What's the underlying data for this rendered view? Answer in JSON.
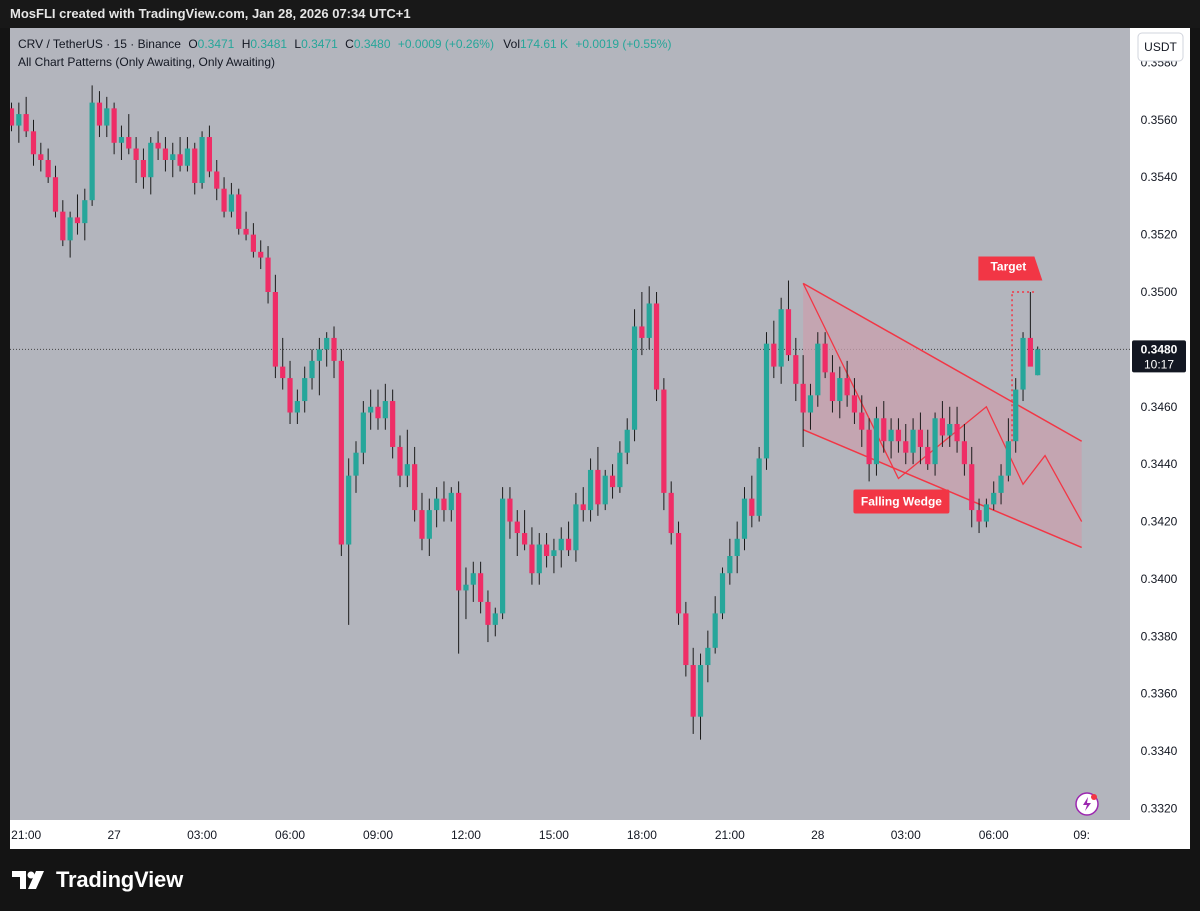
{
  "header": {
    "created_by": "MosFLI created with TradingView.com, Jan 28, 2026 07:34 UTC+1"
  },
  "legend": {
    "symbol": "CRV / TetherUS · 15 · Binance",
    "o_label": "O",
    "o_value": "0.3471",
    "h_label": "H",
    "h_value": "0.3481",
    "l_label": "L",
    "l_value": "0.3471",
    "c_label": "C",
    "c_value": "0.3480",
    "change": "+0.0009 (+0.26%)",
    "vol_label": "Vol",
    "vol_value": "174.61 K",
    "vol_change": "+0.0019 (+0.55%)",
    "indicator": "All Chart Patterns (Only Awaiting, Only Awaiting)"
  },
  "currency_button": "USDT",
  "price_tag": {
    "price": "0.3480",
    "countdown": "10:17"
  },
  "annotations": {
    "target": "Target",
    "pattern": "Falling Wedge"
  },
  "brand": {
    "name": "TradingView"
  },
  "colors": {
    "up": "#26a69a",
    "down": "#ef2d66",
    "background": "#b3b5bd",
    "pattern_line": "#f23645",
    "pattern_fill": "#c9a0ae"
  },
  "chart_data": {
    "type": "candlestick",
    "symbol": "CRV / TetherUS",
    "interval": "15",
    "exchange": "Binance",
    "ylim": [
      0.3316,
      0.3592
    ],
    "yticks": [
      "0.3580",
      "0.3560",
      "0.3540",
      "0.3520",
      "0.3500",
      "0.3460",
      "0.3440",
      "0.3420",
      "0.3400",
      "0.3380",
      "0.3360",
      "0.3340",
      "0.3320"
    ],
    "xticks": [
      {
        "label": "21:00",
        "index": 2
      },
      {
        "label": "27",
        "index": 14
      },
      {
        "label": "03:00",
        "index": 26
      },
      {
        "label": "06:00",
        "index": 38
      },
      {
        "label": "09:00",
        "index": 50
      },
      {
        "label": "12:00",
        "index": 62
      },
      {
        "label": "15:00",
        "index": 74
      },
      {
        "label": "18:00",
        "index": 86
      },
      {
        "label": "21:00",
        "index": 98
      },
      {
        "label": "28",
        "index": 110
      },
      {
        "label": "03:00",
        "index": 122
      },
      {
        "label": "06:00",
        "index": 134
      },
      {
        "label": "09:",
        "index": 146
      }
    ],
    "candles": [
      [
        0.3564,
        0.3566,
        0.3556,
        0.3558
      ],
      [
        0.3558,
        0.3566,
        0.3552,
        0.3562
      ],
      [
        0.3562,
        0.3568,
        0.3554,
        0.3556
      ],
      [
        0.3556,
        0.356,
        0.3544,
        0.3548
      ],
      [
        0.3548,
        0.3552,
        0.3542,
        0.3546
      ],
      [
        0.3546,
        0.355,
        0.3538,
        0.354
      ],
      [
        0.354,
        0.3544,
        0.3526,
        0.3528
      ],
      [
        0.3528,
        0.3532,
        0.3516,
        0.3518
      ],
      [
        0.3518,
        0.3528,
        0.3512,
        0.3526
      ],
      [
        0.3526,
        0.3534,
        0.352,
        0.3524
      ],
      [
        0.3524,
        0.3536,
        0.3518,
        0.3532
      ],
      [
        0.3532,
        0.3572,
        0.353,
        0.3566
      ],
      [
        0.3566,
        0.357,
        0.3554,
        0.3558
      ],
      [
        0.3558,
        0.3568,
        0.3554,
        0.3564
      ],
      [
        0.3564,
        0.3566,
        0.3548,
        0.3552
      ],
      [
        0.3552,
        0.3558,
        0.3546,
        0.3554
      ],
      [
        0.3554,
        0.3562,
        0.3548,
        0.355
      ],
      [
        0.355,
        0.3554,
        0.3538,
        0.3546
      ],
      [
        0.3546,
        0.355,
        0.3536,
        0.354
      ],
      [
        0.354,
        0.3554,
        0.3534,
        0.3552
      ],
      [
        0.3552,
        0.3556,
        0.3546,
        0.355
      ],
      [
        0.355,
        0.3554,
        0.3542,
        0.3546
      ],
      [
        0.3546,
        0.3552,
        0.354,
        0.3548
      ],
      [
        0.3548,
        0.3554,
        0.3542,
        0.3544
      ],
      [
        0.3544,
        0.3554,
        0.3542,
        0.355
      ],
      [
        0.355,
        0.3552,
        0.3534,
        0.3538
      ],
      [
        0.3538,
        0.3556,
        0.3536,
        0.3554
      ],
      [
        0.3554,
        0.3558,
        0.354,
        0.3542
      ],
      [
        0.3542,
        0.3546,
        0.3532,
        0.3536
      ],
      [
        0.3536,
        0.354,
        0.3526,
        0.3528
      ],
      [
        0.3528,
        0.3538,
        0.3526,
        0.3534
      ],
      [
        0.3534,
        0.3536,
        0.352,
        0.3522
      ],
      [
        0.3522,
        0.3528,
        0.3518,
        0.352
      ],
      [
        0.352,
        0.3524,
        0.3512,
        0.3514
      ],
      [
        0.3514,
        0.3518,
        0.3508,
        0.3512
      ],
      [
        0.3512,
        0.3516,
        0.3496,
        0.35
      ],
      [
        0.35,
        0.3506,
        0.347,
        0.3474
      ],
      [
        0.3474,
        0.3484,
        0.3466,
        0.347
      ],
      [
        0.347,
        0.3476,
        0.3454,
        0.3458
      ],
      [
        0.3458,
        0.3466,
        0.3454,
        0.3462
      ],
      [
        0.3462,
        0.3474,
        0.3458,
        0.347
      ],
      [
        0.347,
        0.348,
        0.3466,
        0.3476
      ],
      [
        0.3476,
        0.3484,
        0.3464,
        0.348
      ],
      [
        0.348,
        0.3486,
        0.3474,
        0.3484
      ],
      [
        0.3484,
        0.3488,
        0.347,
        0.3476
      ],
      [
        0.3476,
        0.348,
        0.3408,
        0.3412
      ],
      [
        0.3412,
        0.3442,
        0.3384,
        0.3436
      ],
      [
        0.3436,
        0.3448,
        0.343,
        0.3444
      ],
      [
        0.3444,
        0.3462,
        0.344,
        0.3458
      ],
      [
        0.3458,
        0.3466,
        0.3452,
        0.346
      ],
      [
        0.346,
        0.3466,
        0.3452,
        0.3456
      ],
      [
        0.3456,
        0.3468,
        0.3452,
        0.3462
      ],
      [
        0.3462,
        0.3466,
        0.3442,
        0.3446
      ],
      [
        0.3446,
        0.345,
        0.3432,
        0.3436
      ],
      [
        0.3436,
        0.3452,
        0.3432,
        0.344
      ],
      [
        0.344,
        0.3446,
        0.342,
        0.3424
      ],
      [
        0.3424,
        0.343,
        0.341,
        0.3414
      ],
      [
        0.3414,
        0.3428,
        0.3408,
        0.3424
      ],
      [
        0.3424,
        0.3432,
        0.3418,
        0.3428
      ],
      [
        0.3428,
        0.3434,
        0.342,
        0.3424
      ],
      [
        0.3424,
        0.3432,
        0.342,
        0.343
      ],
      [
        0.343,
        0.3434,
        0.3374,
        0.3396
      ],
      [
        0.3396,
        0.3404,
        0.3386,
        0.3398
      ],
      [
        0.3398,
        0.3406,
        0.3392,
        0.3402
      ],
      [
        0.3402,
        0.3406,
        0.3388,
        0.3392
      ],
      [
        0.3392,
        0.3396,
        0.3378,
        0.3384
      ],
      [
        0.3384,
        0.339,
        0.338,
        0.3388
      ],
      [
        0.3388,
        0.3432,
        0.3386,
        0.3428
      ],
      [
        0.3428,
        0.3432,
        0.3414,
        0.342
      ],
      [
        0.342,
        0.3424,
        0.3408,
        0.3416
      ],
      [
        0.3416,
        0.3424,
        0.341,
        0.3412
      ],
      [
        0.3412,
        0.3418,
        0.3398,
        0.3402
      ],
      [
        0.3402,
        0.3416,
        0.3398,
        0.3412
      ],
      [
        0.3412,
        0.3416,
        0.3404,
        0.3408
      ],
      [
        0.3408,
        0.3414,
        0.3402,
        0.341
      ],
      [
        0.341,
        0.3418,
        0.3404,
        0.3414
      ],
      [
        0.3414,
        0.342,
        0.3408,
        0.341
      ],
      [
        0.341,
        0.343,
        0.3406,
        0.3426
      ],
      [
        0.3426,
        0.3432,
        0.342,
        0.3424
      ],
      [
        0.3424,
        0.3442,
        0.342,
        0.3438
      ],
      [
        0.3438,
        0.3446,
        0.3422,
        0.3426
      ],
      [
        0.3426,
        0.3438,
        0.3424,
        0.3436
      ],
      [
        0.3436,
        0.344,
        0.3428,
        0.3432
      ],
      [
        0.3432,
        0.3448,
        0.343,
        0.3444
      ],
      [
        0.3444,
        0.3456,
        0.344,
        0.3452
      ],
      [
        0.3452,
        0.3494,
        0.3448,
        0.3488
      ],
      [
        0.3488,
        0.35,
        0.3478,
        0.3484
      ],
      [
        0.3484,
        0.3502,
        0.348,
        0.3496
      ],
      [
        0.3496,
        0.35,
        0.3462,
        0.3466
      ],
      [
        0.3466,
        0.347,
        0.3424,
        0.343
      ],
      [
        0.343,
        0.3434,
        0.3412,
        0.3416
      ],
      [
        0.3416,
        0.342,
        0.3384,
        0.3388
      ],
      [
        0.3388,
        0.3392,
        0.3366,
        0.337
      ],
      [
        0.337,
        0.3376,
        0.3346,
        0.3352
      ],
      [
        0.3352,
        0.3374,
        0.3344,
        0.337
      ],
      [
        0.337,
        0.3382,
        0.3364,
        0.3376
      ],
      [
        0.3376,
        0.3394,
        0.3374,
        0.3388
      ],
      [
        0.3388,
        0.3404,
        0.3386,
        0.3402
      ],
      [
        0.3402,
        0.3414,
        0.3398,
        0.3408
      ],
      [
        0.3408,
        0.342,
        0.3402,
        0.3414
      ],
      [
        0.3414,
        0.3432,
        0.341,
        0.3428
      ],
      [
        0.3428,
        0.3436,
        0.3418,
        0.3422
      ],
      [
        0.3422,
        0.3446,
        0.342,
        0.3442
      ],
      [
        0.3442,
        0.3486,
        0.3438,
        0.3482
      ],
      [
        0.3482,
        0.349,
        0.347,
        0.3474
      ],
      [
        0.3474,
        0.3498,
        0.3468,
        0.3494
      ],
      [
        0.3494,
        0.3504,
        0.3476,
        0.3478
      ],
      [
        0.3478,
        0.3484,
        0.3462,
        0.3468
      ],
      [
        0.3468,
        0.3478,
        0.3446,
        0.3458
      ],
      [
        0.3458,
        0.3468,
        0.3452,
        0.3464
      ],
      [
        0.3464,
        0.3486,
        0.346,
        0.3482
      ],
      [
        0.3482,
        0.3486,
        0.347,
        0.3472
      ],
      [
        0.3472,
        0.3478,
        0.3458,
        0.3462
      ],
      [
        0.3462,
        0.3474,
        0.3456,
        0.347
      ],
      [
        0.347,
        0.3476,
        0.346,
        0.3464
      ],
      [
        0.3464,
        0.347,
        0.3454,
        0.3458
      ],
      [
        0.3458,
        0.3464,
        0.3446,
        0.3452
      ],
      [
        0.3452,
        0.3456,
        0.3434,
        0.344
      ],
      [
        0.344,
        0.346,
        0.3436,
        0.3456
      ],
      [
        0.3456,
        0.3462,
        0.3444,
        0.3448
      ],
      [
        0.3448,
        0.3456,
        0.3442,
        0.3452
      ],
      [
        0.3452,
        0.3456,
        0.3444,
        0.3448
      ],
      [
        0.3448,
        0.3454,
        0.344,
        0.3444
      ],
      [
        0.3444,
        0.3456,
        0.344,
        0.3452
      ],
      [
        0.3452,
        0.3458,
        0.344,
        0.3446
      ],
      [
        0.3446,
        0.3452,
        0.3438,
        0.344
      ],
      [
        0.344,
        0.3458,
        0.3436,
        0.3456
      ],
      [
        0.3456,
        0.3462,
        0.3446,
        0.345
      ],
      [
        0.345,
        0.346,
        0.3446,
        0.3454
      ],
      [
        0.3454,
        0.346,
        0.3444,
        0.3448
      ],
      [
        0.3448,
        0.3454,
        0.3436,
        0.344
      ],
      [
        0.344,
        0.3446,
        0.3418,
        0.3424
      ],
      [
        0.3424,
        0.3428,
        0.3416,
        0.342
      ],
      [
        0.342,
        0.3428,
        0.3418,
        0.3426
      ],
      [
        0.3426,
        0.3434,
        0.3424,
        0.343
      ],
      [
        0.343,
        0.344,
        0.3426,
        0.3436
      ],
      [
        0.3436,
        0.3456,
        0.3434,
        0.3448
      ],
      [
        0.3448,
        0.347,
        0.3444,
        0.3466
      ],
      [
        0.3466,
        0.3486,
        0.3462,
        0.3484
      ],
      [
        0.3484,
        0.35,
        0.3476,
        0.3474
      ],
      [
        0.3471,
        0.3481,
        0.3471,
        0.348
      ]
    ],
    "pattern": {
      "name": "Falling Wedge",
      "upper_line": [
        [
          108,
          0.3503
        ],
        [
          146,
          0.3448
        ]
      ],
      "lower_line": [
        [
          108,
          0.3452
        ],
        [
          146,
          0.3411
        ]
      ],
      "target_price": 0.35
    },
    "last_price": 0.348
  }
}
